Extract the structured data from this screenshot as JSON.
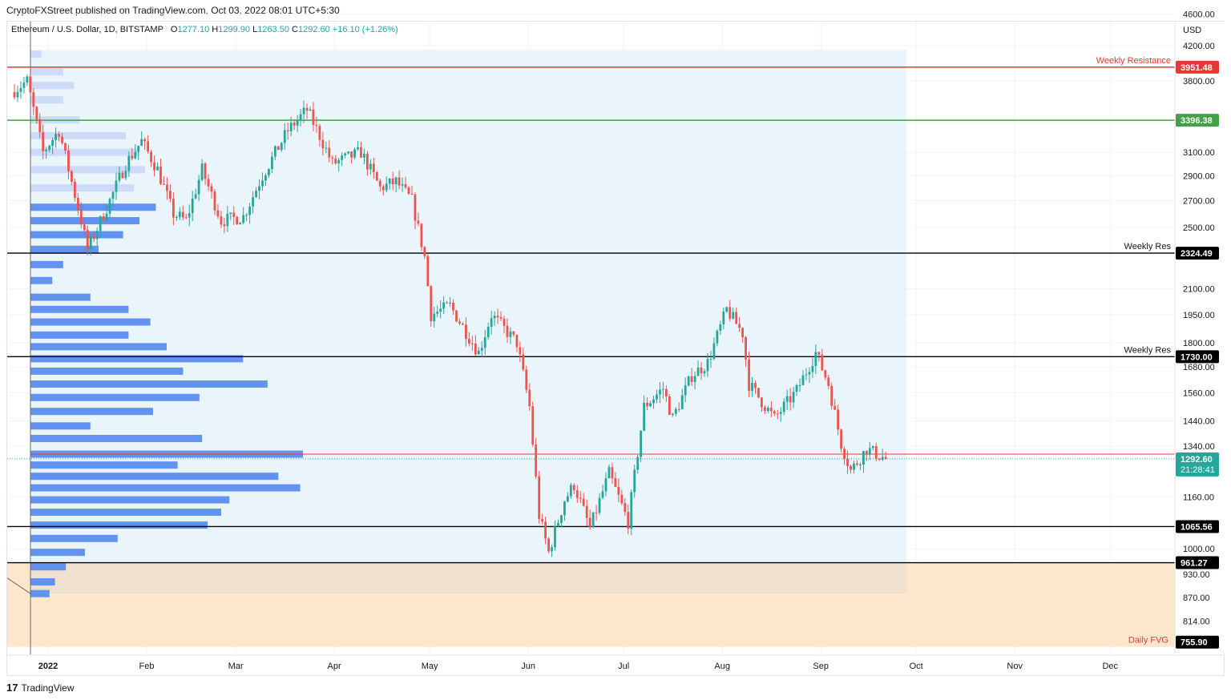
{
  "header": {
    "published": "CryptoFXStreet published on TradingView.com, Oct 03, 2022 08:01 UTC+5:30"
  },
  "legend": {
    "symbol": "Ethereum / U.S. Dollar, 1D, BITSTAMP",
    "open_label": "O",
    "open": "1277.10",
    "high_label": "H",
    "high": "1299.90",
    "low_label": "L",
    "low": "1263.50",
    "close_label": "C",
    "close": "1292.60",
    "change": "+16.10 (+1.26%)"
  },
  "footer": {
    "logo_mark": "17",
    "brand": "TradingView"
  },
  "colors": {
    "up": "#26a69a",
    "down": "#ef5350",
    "vp": "#5b8def",
    "vp_light": "#c5d3f7",
    "zone": "#eaf4fb",
    "fvg": "#fde7cc",
    "resistance": "#e53935",
    "support_green": "#43a047"
  },
  "chart_data": {
    "type": "candlestick",
    "symbol": "ETHUSD",
    "interval": "1D",
    "currency": "USD",
    "y_scale": "log",
    "ylim": [
      740,
      4500
    ],
    "y_ticks": [
      "4600.00",
      "4200.00",
      "3800.00",
      "3100.00",
      "2900.00",
      "2700.00",
      "2500.00",
      "2100.00",
      "1950.00",
      "1800.00",
      "1680.00",
      "1560.00",
      "1440.00",
      "1340.00",
      "1160.00",
      "1000.00",
      "930.00",
      "870.00",
      "814.00"
    ],
    "x_ticks": [
      "2022",
      "Feb",
      "Mar",
      "Apr",
      "May",
      "Jun",
      "Jul",
      "Aug",
      "Sep",
      "Oct",
      "Nov",
      "Dec"
    ],
    "levels": [
      {
        "price": 3951.48,
        "label": "3951.48",
        "name": "Weekly Resistance",
        "color": "#e53935"
      },
      {
        "price": 3396.38,
        "label": "3396.38",
        "name": "",
        "color": "#43a047"
      },
      {
        "price": 2324.49,
        "label": "2324.49",
        "name": "Weekly Res",
        "color": "#000000"
      },
      {
        "price": 1730.0,
        "label": "1730.00",
        "name": "Weekly Res",
        "color": "#000000"
      },
      {
        "price": 1065.56,
        "label": "1065.56",
        "name": "",
        "color": "#000000"
      },
      {
        "price": 961.27,
        "label": "961.27",
        "name": "",
        "color": "#000000"
      }
    ],
    "poc_price": 1310,
    "last_price": {
      "price": 1292.6,
      "label": "1292.60",
      "countdown": "21:28:41"
    },
    "fvg": {
      "top": 961.27,
      "bottom": 755.9,
      "label": "Daily FVG",
      "bottom_label": "755.90"
    },
    "anchor_points": [
      {
        "date": "2022-01-01",
        "price": 3700
      },
      {
        "date": "2022-01-05",
        "price": 3800
      },
      {
        "date": "2022-01-10",
        "price": 3100
      },
      {
        "date": "2022-01-15",
        "price": 3300
      },
      {
        "date": "2022-01-22",
        "price": 2550
      },
      {
        "date": "2022-01-24",
        "price": 2350
      },
      {
        "date": "2022-01-31",
        "price": 2700
      },
      {
        "date": "2022-02-05",
        "price": 3000
      },
      {
        "date": "2022-02-10",
        "price": 3200
      },
      {
        "date": "2022-02-15",
        "price": 2950
      },
      {
        "date": "2022-02-20",
        "price": 2600
      },
      {
        "date": "2022-02-24",
        "price": 2550
      },
      {
        "date": "2022-03-01",
        "price": 2950
      },
      {
        "date": "2022-03-07",
        "price": 2550
      },
      {
        "date": "2022-03-14",
        "price": 2580
      },
      {
        "date": "2022-03-20",
        "price": 2900
      },
      {
        "date": "2022-03-28",
        "price": 3300
      },
      {
        "date": "2022-04-03",
        "price": 3500
      },
      {
        "date": "2022-04-07",
        "price": 3250
      },
      {
        "date": "2022-04-11",
        "price": 3000
      },
      {
        "date": "2022-04-20",
        "price": 3100
      },
      {
        "date": "2022-04-26",
        "price": 2800
      },
      {
        "date": "2022-05-01",
        "price": 2850
      },
      {
        "date": "2022-05-06",
        "price": 2700
      },
      {
        "date": "2022-05-10",
        "price": 2300
      },
      {
        "date": "2022-05-12",
        "price": 1950
      },
      {
        "date": "2022-05-18",
        "price": 2000
      },
      {
        "date": "2022-05-27",
        "price": 1750
      },
      {
        "date": "2022-05-31",
        "price": 1950
      },
      {
        "date": "2022-06-08",
        "price": 1800
      },
      {
        "date": "2022-06-12",
        "price": 1500
      },
      {
        "date": "2022-06-15",
        "price": 1100
      },
      {
        "date": "2022-06-18",
        "price": 990
      },
      {
        "date": "2022-06-23",
        "price": 1150
      },
      {
        "date": "2022-06-26",
        "price": 1200
      },
      {
        "date": "2022-07-01",
        "price": 1060
      },
      {
        "date": "2022-07-07",
        "price": 1240
      },
      {
        "date": "2022-07-13",
        "price": 1080
      },
      {
        "date": "2022-07-18",
        "price": 1500
      },
      {
        "date": "2022-07-24",
        "price": 1580
      },
      {
        "date": "2022-07-27",
        "price": 1450
      },
      {
        "date": "2022-08-02",
        "price": 1640
      },
      {
        "date": "2022-08-07",
        "price": 1700
      },
      {
        "date": "2022-08-13",
        "price": 1980
      },
      {
        "date": "2022-08-18",
        "price": 1850
      },
      {
        "date": "2022-08-20",
        "price": 1600
      },
      {
        "date": "2022-08-28",
        "price": 1450
      },
      {
        "date": "2022-09-04",
        "price": 1570
      },
      {
        "date": "2022-09-10",
        "price": 1750
      },
      {
        "date": "2022-09-14",
        "price": 1600
      },
      {
        "date": "2022-09-18",
        "price": 1350
      },
      {
        "date": "2022-09-21",
        "price": 1250
      },
      {
        "date": "2022-09-26",
        "price": 1330
      },
      {
        "date": "2022-10-02",
        "price": 1292.6
      }
    ],
    "volume_profile": [
      {
        "price": 4100,
        "size": 0.04,
        "shade": "light"
      },
      {
        "price": 3900,
        "size": 0.12,
        "shade": "light"
      },
      {
        "price": 3750,
        "size": 0.16,
        "shade": "light"
      },
      {
        "price": 3600,
        "size": 0.12,
        "shade": "light"
      },
      {
        "price": 3400,
        "size": 0.18,
        "shade": "light"
      },
      {
        "price": 3250,
        "size": 0.35,
        "shade": "light"
      },
      {
        "price": 3100,
        "size": 0.4,
        "shade": "light"
      },
      {
        "price": 2950,
        "size": 0.42,
        "shade": "light"
      },
      {
        "price": 2800,
        "size": 0.38,
        "shade": "light"
      },
      {
        "price": 2650,
        "size": 0.46,
        "shade": "dark"
      },
      {
        "price": 2550,
        "size": 0.4,
        "shade": "dark"
      },
      {
        "price": 2450,
        "size": 0.34,
        "shade": "dark"
      },
      {
        "price": 2350,
        "size": 0.25,
        "shade": "dark"
      },
      {
        "price": 2250,
        "size": 0.12,
        "shade": "dark"
      },
      {
        "price": 2150,
        "size": 0.08,
        "shade": "dark"
      },
      {
        "price": 2050,
        "size": 0.22,
        "shade": "dark"
      },
      {
        "price": 1980,
        "size": 0.36,
        "shade": "dark"
      },
      {
        "price": 1910,
        "size": 0.44,
        "shade": "dark"
      },
      {
        "price": 1840,
        "size": 0.36,
        "shade": "dark"
      },
      {
        "price": 1780,
        "size": 0.5,
        "shade": "dark"
      },
      {
        "price": 1720,
        "size": 0.78,
        "shade": "dark"
      },
      {
        "price": 1660,
        "size": 0.56,
        "shade": "dark"
      },
      {
        "price": 1600,
        "size": 0.87,
        "shade": "dark"
      },
      {
        "price": 1540,
        "size": 0.62,
        "shade": "dark"
      },
      {
        "price": 1480,
        "size": 0.45,
        "shade": "dark"
      },
      {
        "price": 1420,
        "size": 0.22,
        "shade": "dark"
      },
      {
        "price": 1370,
        "size": 0.63,
        "shade": "dark"
      },
      {
        "price": 1310,
        "size": 1.0,
        "shade": "dark"
      },
      {
        "price": 1270,
        "size": 0.54,
        "shade": "dark"
      },
      {
        "price": 1230,
        "size": 0.91,
        "shade": "dark"
      },
      {
        "price": 1190,
        "size": 0.99,
        "shade": "dark"
      },
      {
        "price": 1150,
        "size": 0.73,
        "shade": "dark"
      },
      {
        "price": 1110,
        "size": 0.7,
        "shade": "dark"
      },
      {
        "price": 1070,
        "size": 0.65,
        "shade": "dark"
      },
      {
        "price": 1030,
        "size": 0.32,
        "shade": "dark"
      },
      {
        "price": 990,
        "size": 0.2,
        "shade": "dark"
      },
      {
        "price": 950,
        "size": 0.13,
        "shade": "dark"
      },
      {
        "price": 910,
        "size": 0.09,
        "shade": "dark"
      },
      {
        "price": 880,
        "size": 0.07,
        "shade": "dark"
      }
    ]
  }
}
